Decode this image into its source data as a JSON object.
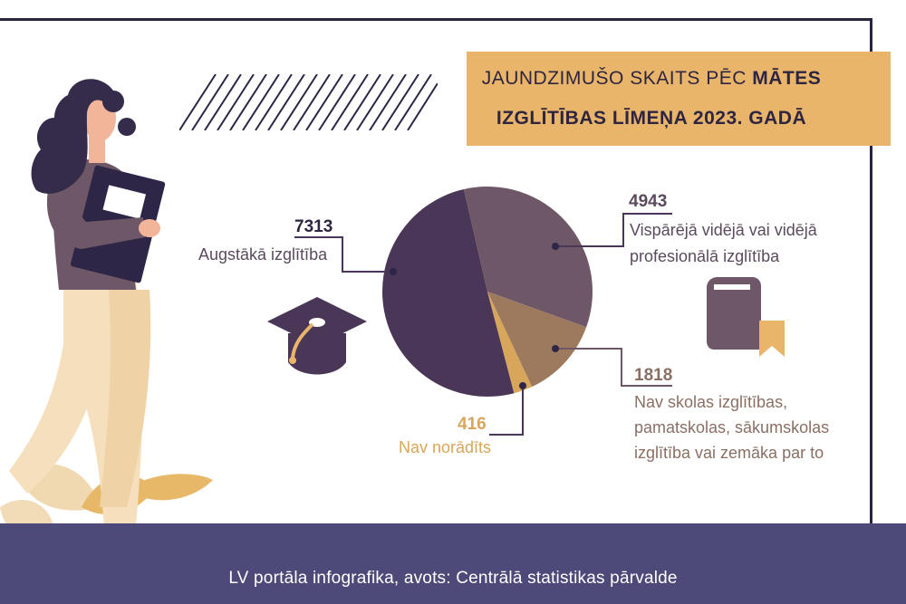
{
  "title": {
    "part1": "JAUNDZIMUŠO SKAITS PĒC ",
    "part1_bold": "MĀTES",
    "line2": "IZGLĪTĪBAS LĪMEŅA 2023. GADĀ"
  },
  "footer": "LV portāla infografika, avots: Centrālā statistikas pārvalde",
  "colors": {
    "dark": "#4a3758",
    "medium": "#6e5767",
    "light": "#9d7a5e",
    "gold": "#d8a65b",
    "footer": "#4d4978",
    "title_bg": "#e9b56b"
  },
  "icons": [
    "graduation-cap-icon",
    "book-bookmark-icon"
  ],
  "chart_data": {
    "type": "pie",
    "title": "JAUNDZIMUŠO SKAITS PĒC MĀTES IZGLĪTĪBAS LĪMEŅA 2023. GADĀ",
    "slices": [
      {
        "label": "Augstākā izglītība",
        "value": 7313,
        "color": "#4a3758"
      },
      {
        "label": "Vispārējā vidējā vai vidējā profesionālā izglītība",
        "value": 4943,
        "color": "#6e5767"
      },
      {
        "label": "Nav skolas izglītības, pamatskolas, sākumskolas izglītība vai zemāka par to",
        "value": 1818,
        "color": "#9d7a5e"
      },
      {
        "label": "Nav norādīts",
        "value": 416,
        "color": "#d8a65b"
      }
    ],
    "labels": {
      "s0": {
        "value": "7313",
        "lines": [
          "Augstākā izglītība"
        ]
      },
      "s1": {
        "value": "4943",
        "lines": [
          "Vispārējā vidējā vai vidējā",
          "profesionālā izglītība"
        ]
      },
      "s2": {
        "value": "1818",
        "lines": [
          "Nav skolas izglītības,",
          "pamatskolas, sākumskolas",
          "izglītība vai zemāka par to"
        ]
      },
      "s3": {
        "value": "416",
        "lines": [
          "Nav norādīts"
        ]
      }
    }
  }
}
